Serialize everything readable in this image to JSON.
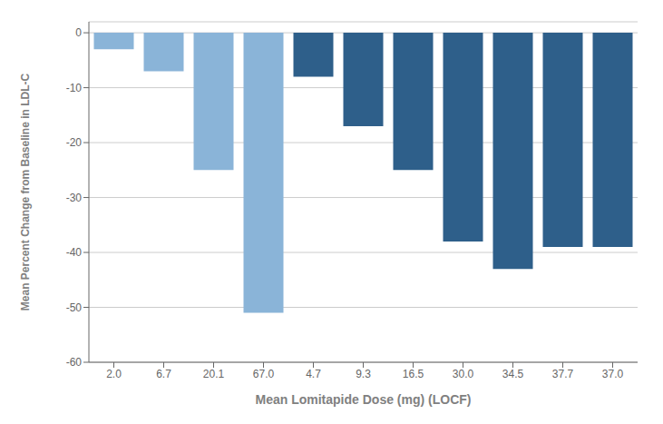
{
  "chart_data": {
    "type": "bar",
    "categories": [
      "2.0",
      "6.7",
      "20.1",
      "67.0",
      "4.7",
      "9.3",
      "16.5",
      "30.0",
      "34.5",
      "37.7",
      "37.0"
    ],
    "values": [
      -3.0,
      -7.0,
      -25.0,
      -51.0,
      -8.0,
      -17.0,
      -25.0,
      -38.0,
      -43.0,
      -39.0,
      -39.0
    ],
    "colors": [
      "#8ab4d8",
      "#8ab4d8",
      "#8ab4d8",
      "#8ab4d8",
      "#2e5f8a",
      "#2e5f8a",
      "#2e5f8a",
      "#2e5f8a",
      "#2e5f8a",
      "#2e5f8a",
      "#2e5f8a"
    ],
    "xlabel": "Mean Lomitapide Dose (mg) (LOCF)",
    "ylabel": "Mean Percent Change from Baseline in LDL-C",
    "ylim": [
      -60,
      2
    ],
    "yticks": [
      0,
      -10,
      -20,
      -30,
      -40,
      -50,
      -60
    ],
    "grid": true
  }
}
